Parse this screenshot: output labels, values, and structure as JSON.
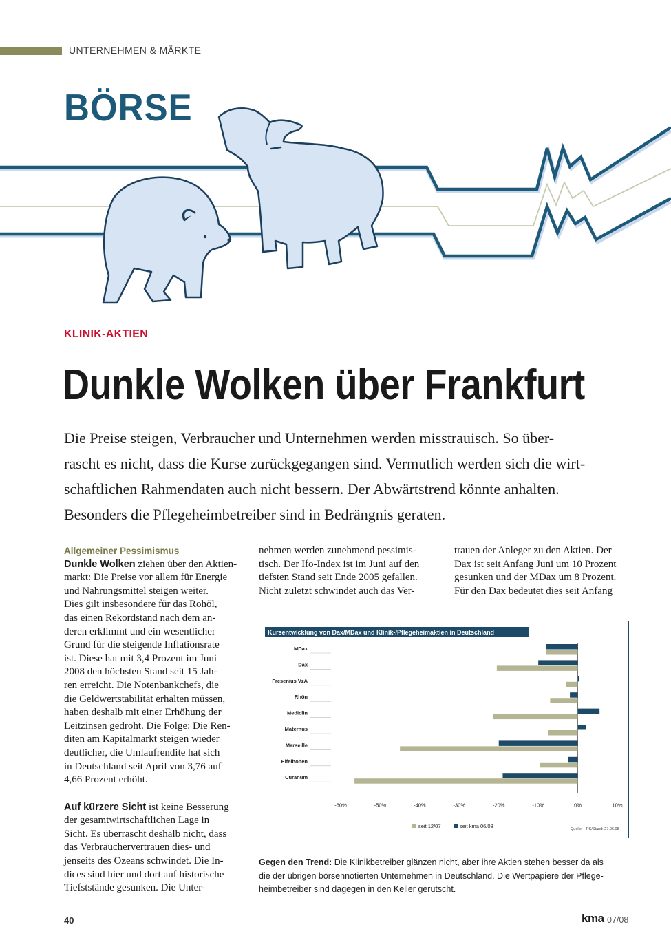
{
  "header": {
    "section_label": "UNTERNEHMEN & MÄRKTE",
    "page_title": "BÖRSE"
  },
  "article": {
    "kicker": "KLINIK-AKTIEN",
    "headline": "Dunkle Wolken über Frankfurt",
    "lead_lines": [
      "Die Preise steigen, Verbraucher und Unternehmen werden misstrauisch. So über-",
      "rascht es nicht, dass die Kurse zurückgegangen sind. Vermutlich werden sich die wirt-",
      "schaftlichen Rahmendaten auch nicht bessern. Der Abwärtstrend könnte anhalten.",
      "Besonders die Pflegeheimbetreiber sind in Bedrängnis geraten."
    ],
    "subhead_1": "Allgemeiner Pessimismus",
    "lead_in_1": "Dunkle Wolken",
    "col1_lines": [
      " ziehen über den Aktien-",
      "markt: Die Preise vor allem für Energie",
      "und Nahrungsmittel steigen weiter.",
      "Dies gilt insbesondere für das Rohöl,",
      "das einen Rekordstand nach dem an-",
      "deren erklimmt und ein wesentlicher",
      "Grund für die steigende Inflationsrate",
      "ist. Diese hat mit 3,4 Prozent im Juni",
      "2008 den höchsten Stand seit 15 Jah-",
      "ren erreicht. Die Notenbankchefs, die",
      "die Geldwertstabilität erhalten müssen,",
      "haben deshalb mit einer Erhöhung der",
      "Leitzinsen gedroht. Die Folge: Die Ren-",
      "diten am Kapitalmarkt steigen wieder",
      "deutlicher, die Umlaufrendite hat sich",
      "in Deutschland seit April von 3,76 auf",
      "4,66 Prozent erhöht."
    ],
    "lead_in_2": "Auf kürzere Sicht",
    "col1b_lines": [
      " ist keine Besserung",
      "der gesamtwirtschaftlichen Lage in",
      "Sicht. Es überrascht deshalb nicht, dass",
      "das Verbrauchervertrauen dies- und",
      "jenseits des Ozeans schwindet. Die In-",
      "dices sind hier und dort auf historische",
      "Tiefststände gesunken. Die Unter-"
    ],
    "col2_lines": [
      "nehmen werden zunehmend pessimis-",
      "tisch. Der Ifo-Index ist im Juni auf den",
      "tiefsten Stand seit Ende 2005 gefallen.",
      "Nicht zuletzt schwindet auch das Ver-"
    ],
    "col3_lines": [
      "trauen der Anleger zu den Aktien. Der",
      "Dax ist seit Anfang Juni um 10 Prozent",
      "gesunken und der MDax um 8 Prozent.",
      "Für den Dax bedeutet dies seit Anfang"
    ]
  },
  "chart_data": {
    "type": "bar",
    "orientation": "horizontal",
    "title": "Kursentwicklung von Dax/MDax und Klinik-/Pflegeheimaktien in Deutschland",
    "categories": [
      "MDax",
      "Dax",
      "Fresenius VzA",
      "Rhön",
      "Mediclin",
      "Maternus",
      "Marseille",
      "Eifelhöhen",
      "Curanum"
    ],
    "series": [
      {
        "name": "seit kma 06/08",
        "color": "#1d4a66",
        "values": [
          -8,
          -10,
          0.3,
          -2,
          5.5,
          2,
          -20,
          -2.5,
          -19
        ]
      },
      {
        "name": "seit 12/07",
        "color": "#b5b593",
        "values": [
          -8,
          -20.5,
          -3,
          -7,
          -21.5,
          -7.5,
          -45,
          -9.5,
          -56.5
        ]
      }
    ],
    "xlim": [
      -60,
      10
    ],
    "xticks": [
      "-60%",
      "-50%",
      "-40%",
      "-30%",
      "-20%",
      "-10%",
      "0%",
      "10%"
    ],
    "source": "Quelle: HPS/Stand: 27.06.08",
    "legend_position": "bottom"
  },
  "caption": {
    "lead_in": "Gegen den Trend:",
    "lines": [
      " Die Klinikbetreiber glänzen nicht, aber ihre Aktien stehen besser da als",
      "die der übrigen börsennotierten Unternehmen in Deutschland. Die Wertpapiere der Pflege-",
      "heimbetreiber sind dagegen in den Keller gerutscht."
    ]
  },
  "footer": {
    "page_number": "40",
    "brand": "kma",
    "issue": "07/08"
  },
  "colors": {
    "accent_blue": "#1d5a7a",
    "kicker_red": "#c8102e",
    "olive": "#8a8a5a",
    "animal_fill": "#d7e4f4",
    "chart_dark": "#1d4a66",
    "chart_light": "#b5b593"
  }
}
